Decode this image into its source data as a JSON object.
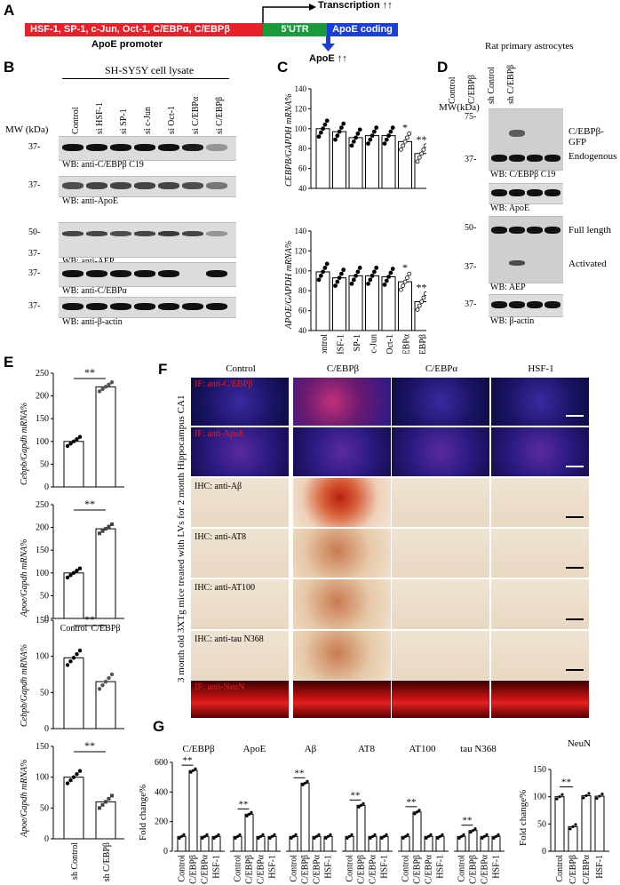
{
  "panels": {
    "A": "A",
    "B": "B",
    "C": "C",
    "D": "D",
    "E": "E",
    "F": "F",
    "G": "G"
  },
  "panelA": {
    "promoter_factors": "HSF-1, SP-1, c-Jun, Oct-1, C/EBPα, C/EBPβ",
    "utr": "5'UTR",
    "coding": "ApoE coding",
    "promoter_label": "ApoE promoter",
    "transcription": "Transcription ↑↑",
    "apoe_up": "ApoE ↑↑",
    "colors": {
      "promoter": "#e8202a",
      "utr": "#1a9a3a",
      "coding": "#1a3fd8"
    }
  },
  "panelB": {
    "title": "SH-SY5Y cell lysate",
    "mw_label": "MW (kDa)",
    "lanes": [
      "Control",
      "si HSF-1",
      "si SP-1",
      "si c-Jun",
      "si Oct-1",
      "si C/EBPα",
      "si C/EBPβ"
    ],
    "blots": [
      {
        "mw": [
          "37-"
        ],
        "wb": "WB: anti-C/EBPβ C19"
      },
      {
        "mw": [
          "37-"
        ],
        "wb": "WB: anti-ApoE"
      },
      {
        "mw": [
          "50-",
          "37-"
        ],
        "wb": "WB: anti-AEP"
      },
      {
        "mw": [
          "37-"
        ],
        "wb": "WB: anti-C/EBPα"
      },
      {
        "mw": [
          "37-"
        ],
        "wb": "WB: anti-β-actin"
      }
    ]
  },
  "panelC": {
    "top_ylabel": "CEBPB/GAPDH mRNA%",
    "bottom_ylabel": "APOE/GAPDH mRNA%",
    "categories": [
      "Control",
      "si HSF-1",
      "si SP-1",
      "si c-Jun",
      "si Oct-1",
      "si C/EBPα",
      "si C/EBPβ"
    ]
  },
  "panelD": {
    "title": "Rat primary astrocytes",
    "mw_label": "MW(kDa)",
    "lanes": [
      "Control",
      "C/EBPβ",
      "sh Control",
      "sh C/EBPβ"
    ],
    "blots": [
      {
        "mw": [
          "75-",
          "37-"
        ],
        "wb": "WB: C/EBPβ C19",
        "right": [
          "C/EBPβ-GFP",
          "Endogenous"
        ]
      },
      {
        "mw": [],
        "wb": "WB: ApoE",
        "right": []
      },
      {
        "mw": [
          "50-",
          "37-"
        ],
        "wb": "WB: AEP",
        "right": [
          "Full length",
          "Activated"
        ]
      },
      {
        "mw": [
          "37-"
        ],
        "wb": "WB: β-actin",
        "right": []
      }
    ]
  },
  "panelE": {
    "ylabels": [
      "Cebpb/Gapdh mRNA%",
      "Apoe/Gapdh mRNA%",
      "Cebpb/Gapdh mRNA%",
      "Apoe/Gapdh mRNA%"
    ],
    "top_categories": [
      "Control",
      "C/EBPβ"
    ],
    "bottom_categories": [
      "sh Control",
      "sh C/EBPβ"
    ],
    "sig": "**"
  },
  "panelF": {
    "columns": [
      "Control",
      "C/EBPβ",
      "C/EBPα",
      "HSF-1"
    ],
    "rows": [
      "IF: anti-C/EBPβ",
      "IF: anti-ApoE",
      "IHC: anti-Aβ",
      "IHC: anti-AT8",
      "IHC: anti-AT100",
      "IHC: anti-tau N368",
      "IF: anti-NeuN"
    ],
    "side_label": "3 month old 3XTg mice treated with LVs for 2 month Hippocampus CA1"
  },
  "panelG": {
    "ylabel": "Fold change%",
    "groups": [
      "C/EBPβ",
      "ApoE",
      "Aβ",
      "AT8",
      "AT100",
      "tau N368",
      "NeuN"
    ],
    "conditions": [
      "Control",
      "C/EBPβ",
      "C/EBPα",
      "HSF-1"
    ],
    "sig": "**"
  },
  "chart_data": [
    {
      "type": "bar",
      "ylabel": "CEBPB/GAPDH mRNA%",
      "categories": [
        "Control",
        "si HSF-1",
        "si SP-1",
        "si c-Jun",
        "si Oct-1",
        "si C/EBPα",
        "si C/EBPβ"
      ],
      "values": [
        100,
        97,
        91,
        93,
        93,
        87,
        75
      ],
      "ylim": [
        40,
        140
      ],
      "annotations": [
        "",
        "",
        "",
        "",
        "",
        "*",
        "**"
      ]
    },
    {
      "type": "bar",
      "ylabel": "APOE/GAPDH mRNA%",
      "categories": [
        "Control",
        "si HSF-1",
        "si SP-1",
        "si c-Jun",
        "si Oct-1",
        "si C/EBPα",
        "si C/EBPβ"
      ],
      "values": [
        99,
        93,
        95,
        95,
        94,
        89,
        69
      ],
      "ylim": [
        40,
        140
      ],
      "annotations": [
        "",
        "",
        "",
        "",
        "",
        "*",
        "**"
      ]
    },
    {
      "type": "bar",
      "ylabel": "Cebpb/Gapdh mRNA%",
      "categories": [
        "Control",
        "C/EBPβ"
      ],
      "values": [
        100,
        220
      ],
      "ylim": [
        0,
        250
      ]
    },
    {
      "type": "bar",
      "ylabel": "Apoe/Gapdh mRNA%",
      "categories": [
        "Control",
        "C/EBPβ"
      ],
      "values": [
        100,
        197
      ],
      "ylim": [
        0,
        250
      ]
    },
    {
      "type": "bar",
      "ylabel": "Cebpb/Gapdh mRNA%",
      "categories": [
        "sh Control",
        "sh C/EBPβ"
      ],
      "values": [
        98,
        65
      ],
      "ylim": [
        0,
        150
      ]
    },
    {
      "type": "bar",
      "ylabel": "Apoe/Gapdh mRNA%",
      "categories": [
        "sh Control",
        "sh C/EBPβ"
      ],
      "values": [
        100,
        60
      ],
      "ylim": [
        0,
        150
      ]
    },
    {
      "type": "bar",
      "ylabel": "Fold change%",
      "ylim": [
        0,
        600
      ],
      "categories": [
        "Control",
        "C/EBPβ",
        "C/EBPα",
        "HSF-1"
      ],
      "series": [
        {
          "name": "C/EBPβ",
          "values": [
            100,
            545,
            100,
            100
          ]
        },
        {
          "name": "ApoE",
          "values": [
            100,
            250,
            100,
            100
          ]
        },
        {
          "name": "Aβ",
          "values": [
            100,
            460,
            100,
            100
          ]
        },
        {
          "name": "AT8",
          "values": [
            100,
            310,
            100,
            100
          ]
        },
        {
          "name": "AT100",
          "values": [
            100,
            265,
            100,
            100
          ]
        },
        {
          "name": "tau N368",
          "values": [
            100,
            140,
            100,
            100
          ]
        }
      ]
    },
    {
      "type": "bar",
      "ylabel": "Fold change%",
      "ylim": [
        0,
        150
      ],
      "categories": [
        "Control",
        "C/EBPβ",
        "C/EBPα",
        "HSF-1"
      ],
      "series": [
        {
          "name": "NeuN",
          "values": [
            100,
            45,
            102,
            101
          ]
        }
      ]
    }
  ]
}
